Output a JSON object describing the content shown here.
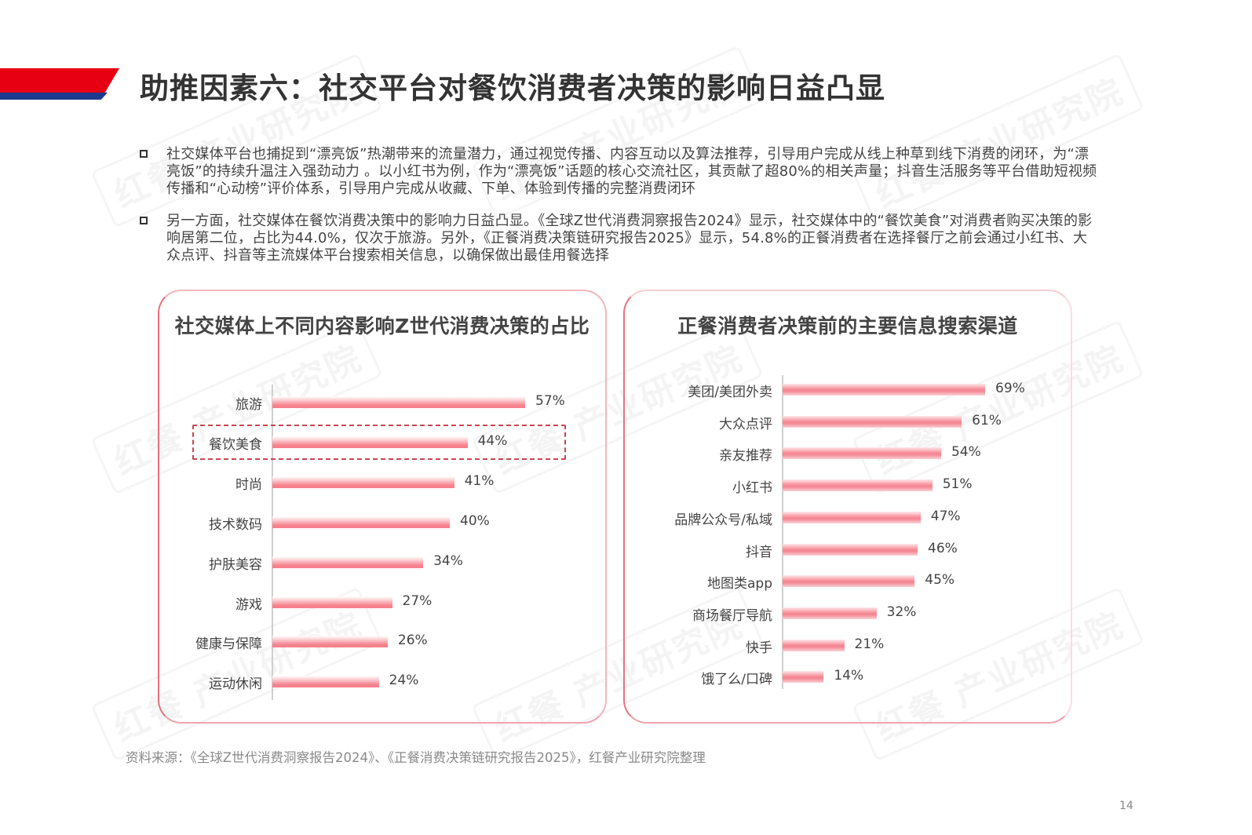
{
  "header": {
    "title": "助推因素六：社交平台对餐饮消费者决策的影响日益凸显",
    "band_colors": {
      "red": "#e60012",
      "blue": "#1e3a8f"
    }
  },
  "bullets": [
    {
      "text": "社交媒体平台也捕捉到“漂亮饭”热潮带来的流量潜力，通过视觉传播、内容互动以及算法推荐，引导用户完成从线上种草到线下消费的闭环，为“漂亮饭”的持续升温注入强劲动力 。以小红书为例，作为“漂亮饭”话题的核心交流社区，其贡献了超80%的相关声量；抖音生活服务等平台借助短视频传播和“心动榜”评价体系，引导用户完成从收藏、下单、体验到传播的完整消费闭环"
    },
    {
      "text": "另一方面，社交媒体在餐饮消费决策中的影响力日益凸显。《全球Z世代消费洞察报告2024》显示，社交媒体中的“餐饮美食”对消费者购买决策的影响居第二位，占比为44.0%，仅次于旅游。另外，《正餐消费决策链研究报告2025》显示，54.8%的正餐消费者在选择餐厅之前会通过小红书、大众点评、抖音等主流媒体平台搜索相关信息，以确保做出最佳用餐选择"
    }
  ],
  "chart_data": [
    {
      "type": "bar",
      "orientation": "horizontal",
      "title": "社交媒体上不同内容影响Z世代消费决策的占比",
      "categories": [
        "旅游",
        "餐饮美食",
        "时尚",
        "技术数码",
        "护肤美容",
        "游戏",
        "健康与保障",
        "运动休闲"
      ],
      "values": [
        57,
        44,
        41,
        40,
        34,
        27,
        26,
        24
      ],
      "value_labels": [
        "57%",
        "44%",
        "41%",
        "40%",
        "34%",
        "27%",
        "26%",
        "24%"
      ],
      "highlighted_category": "餐饮美食",
      "unit": "%",
      "xlabel": "",
      "ylabel": "",
      "grid": false,
      "bar_color": "#f57f8b"
    },
    {
      "type": "bar",
      "orientation": "horizontal",
      "title": "正餐消费者决策前的主要信息搜索渠道",
      "categories": [
        "美团/美团外卖",
        "大众点评",
        "亲友推荐",
        "小红书",
        "品牌公众号/私域",
        "抖音",
        "地图类app",
        "商场餐厅导航",
        "快手",
        "饿了么/口碑"
      ],
      "values": [
        69,
        61,
        54,
        51,
        47,
        46,
        45,
        32,
        21,
        14
      ],
      "value_labels": [
        "69%",
        "61%",
        "54%",
        "51%",
        "47%",
        "46%",
        "45%",
        "32%",
        "21%",
        "14%"
      ],
      "unit": "%",
      "xlabel": "",
      "ylabel": "",
      "grid": false,
      "bar_color": "#f38390"
    }
  ],
  "watermark": {
    "text_brand": "红餐",
    "text_org": "产业研究院"
  },
  "footer": {
    "source": "资料来源：《全球Z世代消费洞察报告2024》、《正餐消费决策链研究报告2025》，红餐产业研究院整理",
    "page_number": "14"
  }
}
